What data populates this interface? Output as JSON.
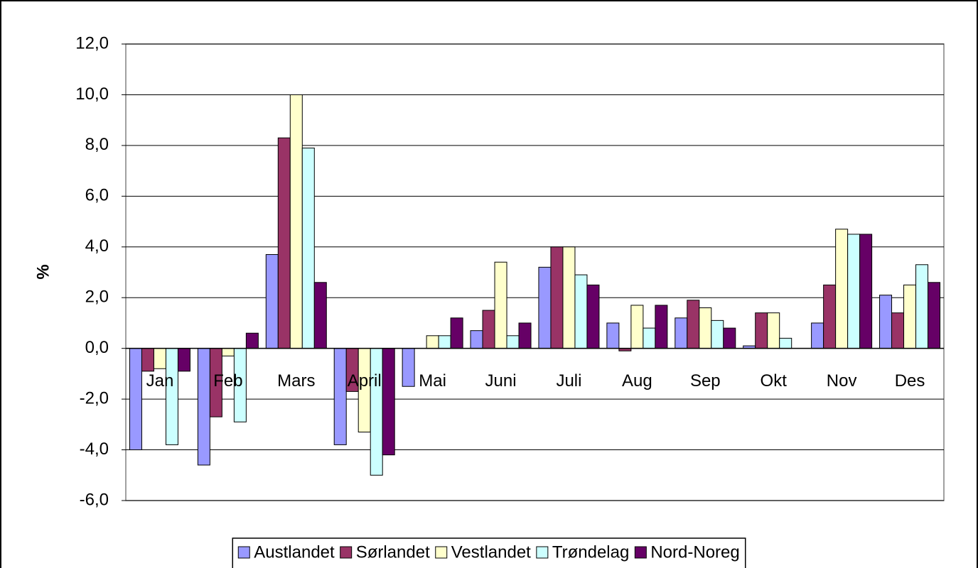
{
  "chart_data": {
    "type": "bar",
    "y_label": "%",
    "categories": [
      "Jan",
      "Feb",
      "Mars",
      "April",
      "Mai",
      "Juni",
      "Juli",
      "Aug",
      "Sep",
      "Okt",
      "Nov",
      "Des"
    ],
    "series": [
      {
        "name": "Austlandet",
        "color": "#9999ff",
        "values": [
          -4.0,
          -4.6,
          3.7,
          -3.8,
          -1.5,
          0.7,
          3.2,
          1.0,
          1.2,
          0.1,
          1.0,
          2.1
        ]
      },
      {
        "name": "Sørlandet",
        "color": "#993366",
        "values": [
          -0.9,
          -2.7,
          8.3,
          -1.7,
          0.0,
          1.5,
          4.0,
          -0.1,
          1.9,
          1.4,
          2.5,
          1.4
        ]
      },
      {
        "name": "Vestlandet",
        "color": "#ffffcc",
        "values": [
          -0.8,
          -0.3,
          10.0,
          -3.3,
          0.5,
          3.4,
          4.0,
          1.7,
          1.6,
          1.4,
          4.7,
          2.5
        ]
      },
      {
        "name": "Trøndelag",
        "color": "#ccffff",
        "values": [
          -3.8,
          -2.9,
          7.9,
          -5.0,
          0.5,
          0.5,
          2.9,
          0.8,
          1.1,
          0.4,
          4.5,
          3.3
        ]
      },
      {
        "name": "Nord-Noreg",
        "color": "#660066",
        "values": [
          -0.9,
          0.6,
          2.6,
          -4.2,
          1.2,
          1.0,
          2.5,
          1.7,
          0.8,
          0.0,
          4.5,
          2.6
        ]
      }
    ],
    "ylim": [
      -6,
      12
    ],
    "yticks": [
      {
        "value": -6,
        "label": "-6,0"
      },
      {
        "value": -4,
        "label": "-4,0"
      },
      {
        "value": -2,
        "label": "-2,0"
      },
      {
        "value": 0,
        "label": "0,0"
      },
      {
        "value": 2,
        "label": "2,0"
      },
      {
        "value": 4,
        "label": "4,0"
      },
      {
        "value": 6,
        "label": "6,0"
      },
      {
        "value": 8,
        "label": "8,0"
      },
      {
        "value": 10,
        "label": "10,0"
      },
      {
        "value": 12,
        "label": "12,0"
      }
    ],
    "grid": true,
    "legend": "bottom"
  }
}
